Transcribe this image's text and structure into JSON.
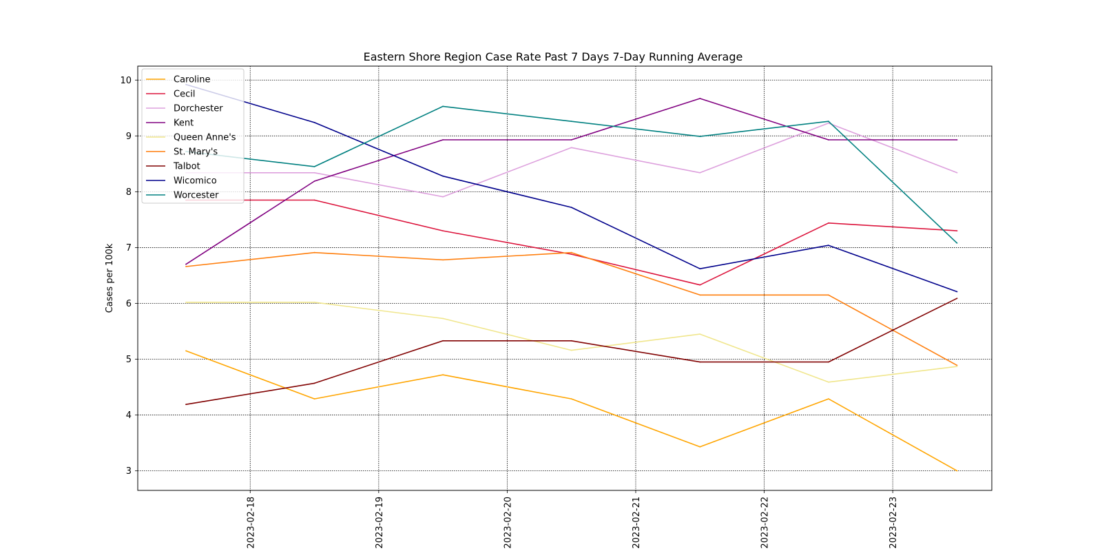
{
  "chart_data": {
    "type": "line",
    "title": "Eastern Shore Region Case Rate  Past 7 Days 7-Day Running Average",
    "xlabel": "",
    "ylabel": "Cases per 100k",
    "x": [
      "2023-02-17 12:00",
      "2023-02-18 12:00",
      "2023-02-19 12:00",
      "2023-02-20 12:00",
      "2023-02-21 12:00",
      "2023-02-22 12:00",
      "2023-02-23 12:00"
    ],
    "xticks": [
      "2023-02-18",
      "2023-02-19",
      "2023-02-20",
      "2023-02-21",
      "2023-02-22",
      "2023-02-23"
    ],
    "xlim": [
      "2023-02-17 03:00",
      "2023-02-23 18:30"
    ],
    "ylim": [
      2.65,
      10.25
    ],
    "yticks": [
      3,
      4,
      5,
      6,
      7,
      8,
      9,
      10
    ],
    "grid": true,
    "legend_position": "top-left",
    "series": [
      {
        "name": "Caroline",
        "color": "#FFA500",
        "values": [
          5.15,
          4.29,
          4.72,
          4.29,
          3.43,
          4.29,
          3.0
        ]
      },
      {
        "name": "Cecil",
        "color": "#DC143C",
        "values": [
          7.85,
          7.85,
          7.3,
          6.88,
          6.33,
          7.44,
          7.3
        ]
      },
      {
        "name": "Dorchester",
        "color": "#DDA0DD",
        "values": [
          8.34,
          8.34,
          7.91,
          8.79,
          8.34,
          9.23,
          8.34
        ]
      },
      {
        "name": "Kent",
        "color": "#800080",
        "values": [
          6.7,
          8.19,
          8.93,
          8.93,
          9.67,
          8.93,
          8.93
        ]
      },
      {
        "name": "Queen Anne's",
        "color": "#F0E68C",
        "values": [
          6.02,
          6.02,
          5.73,
          5.16,
          5.45,
          4.59,
          4.87
        ]
      },
      {
        "name": "St. Mary's",
        "color": "#FF7F0E",
        "values": [
          6.66,
          6.91,
          6.78,
          6.91,
          6.15,
          6.15,
          4.89
        ]
      },
      {
        "name": "Talbot",
        "color": "#800000",
        "values": [
          4.19,
          4.57,
          5.33,
          5.33,
          4.95,
          4.95,
          6.09
        ]
      },
      {
        "name": "Wicomico",
        "color": "#00008B",
        "values": [
          9.92,
          9.24,
          8.28,
          7.72,
          6.62,
          7.04,
          6.21
        ]
      },
      {
        "name": "Worcester",
        "color": "#008080",
        "values": [
          8.72,
          8.45,
          9.53,
          9.26,
          8.99,
          9.26,
          7.08
        ]
      }
    ]
  }
}
